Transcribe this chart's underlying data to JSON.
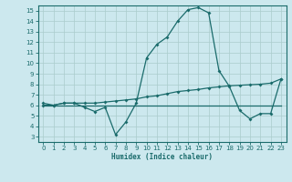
{
  "xlabel": "Humidex (Indice chaleur)",
  "x_ticks": [
    0,
    1,
    2,
    3,
    4,
    5,
    6,
    7,
    8,
    9,
    10,
    11,
    12,
    13,
    14,
    15,
    16,
    17,
    18,
    19,
    20,
    21,
    22,
    23
  ],
  "y_ticks": [
    3,
    4,
    5,
    6,
    7,
    8,
    9,
    10,
    11,
    12,
    13,
    14,
    15
  ],
  "xlim": [
    -0.5,
    23.5
  ],
  "ylim": [
    2.5,
    15.5
  ],
  "bg_color": "#cce8ee",
  "grid_color": "#aacccc",
  "line_color": "#1a6b6b",
  "line1_x": [
    0,
    1,
    2,
    3,
    4,
    5,
    6,
    7,
    8,
    9,
    10,
    11,
    12,
    13,
    14,
    15,
    16,
    17,
    18,
    19,
    20,
    21,
    22,
    23
  ],
  "line1_y": [
    6.0,
    6.0,
    6.2,
    6.2,
    5.8,
    5.4,
    5.8,
    3.2,
    4.4,
    6.2,
    10.5,
    11.8,
    12.5,
    14.0,
    15.1,
    15.3,
    14.8,
    9.3,
    7.8,
    5.5,
    4.7,
    5.2,
    5.2,
    8.5
  ],
  "line2_x": [
    0,
    1,
    2,
    3,
    4,
    5,
    6,
    7,
    8,
    9,
    10,
    11,
    12,
    13,
    14,
    15,
    16,
    17,
    18,
    19,
    20,
    21,
    22,
    23
  ],
  "line2_y": [
    6.2,
    6.0,
    6.2,
    6.2,
    6.2,
    6.2,
    6.3,
    6.4,
    6.5,
    6.6,
    6.8,
    6.9,
    7.1,
    7.3,
    7.4,
    7.5,
    7.65,
    7.75,
    7.85,
    7.9,
    7.95,
    8.0,
    8.1,
    8.5
  ],
  "line3_x": [
    0,
    1,
    2,
    3,
    4,
    5,
    6,
    7,
    8,
    9,
    10,
    11,
    12,
    13,
    14,
    15,
    16,
    17,
    18,
    19,
    20,
    21,
    22,
    23
  ],
  "line3_y": [
    6.0,
    6.0,
    6.0,
    6.0,
    6.0,
    6.0,
    6.0,
    6.0,
    6.0,
    6.0,
    6.0,
    6.0,
    6.0,
    6.0,
    6.0,
    6.0,
    6.0,
    6.0,
    6.0,
    6.0,
    6.0,
    6.0,
    6.0,
    6.0
  ]
}
